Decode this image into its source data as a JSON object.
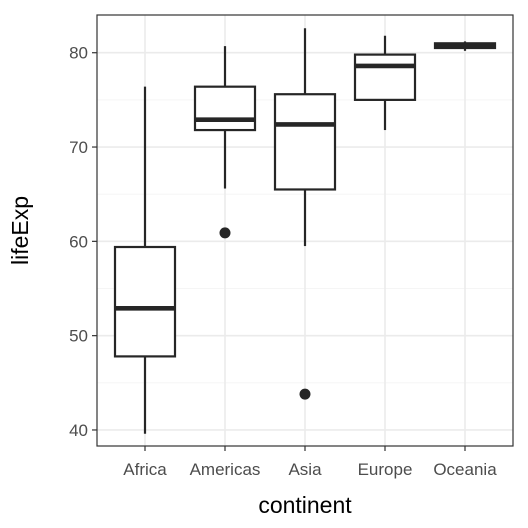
{
  "chart_data": {
    "type": "boxplot",
    "title": "",
    "xlabel": "continent",
    "ylabel": "lifeExp",
    "categories": [
      "Africa",
      "Americas",
      "Asia",
      "Europe",
      "Oceania"
    ],
    "ylim": [
      38.3,
      84.0
    ],
    "yticks": [
      40,
      50,
      60,
      70,
      80
    ],
    "grid": true,
    "boxes": [
      {
        "category": "Africa",
        "min": 39.6,
        "q1": 47.8,
        "median": 52.9,
        "q3": 59.4,
        "max": 76.4,
        "outliers": []
      },
      {
        "category": "Americas",
        "min": 65.6,
        "q1": 71.8,
        "median": 72.9,
        "q3": 76.4,
        "max": 80.7,
        "outliers": [
          60.9
        ]
      },
      {
        "category": "Asia",
        "min": 59.5,
        "q1": 65.5,
        "median": 72.4,
        "q3": 75.6,
        "max": 82.6,
        "outliers": [
          43.8
        ]
      },
      {
        "category": "Europe",
        "min": 71.8,
        "q1": 75.0,
        "median": 78.6,
        "q3": 79.8,
        "max": 81.8,
        "outliers": []
      },
      {
        "category": "Oceania",
        "min": 80.2,
        "q1": 80.5,
        "median": 80.7,
        "q3": 81.0,
        "max": 81.2,
        "outliers": []
      }
    ],
    "colors": {
      "box_line": "#262626",
      "box_fill": "#ffffff",
      "grid_major": "#ebebeb",
      "grid_minor": "#f5f5f5",
      "panel_border": "#333333"
    }
  }
}
